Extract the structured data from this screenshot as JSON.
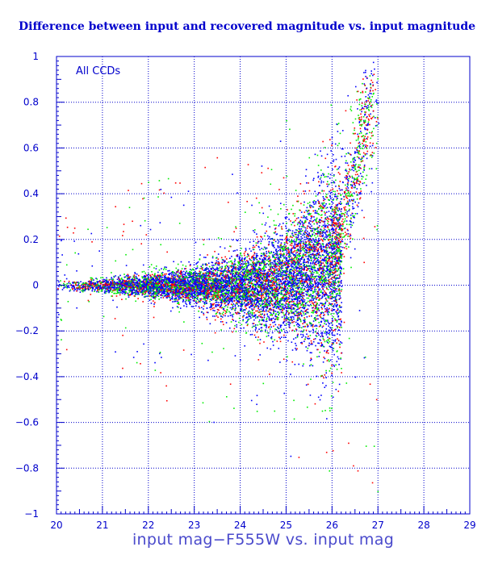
{
  "chart_data": {
    "type": "scatter",
    "title": "Difference between input and recovered magnitude vs. input magnitude",
    "xlabel": "input mag−F555W vs. input mag",
    "ylabel": "",
    "annotation": "All CCDs",
    "xlim": [
      20,
      29
    ],
    "ylim": [
      -1,
      1
    ],
    "x_ticks": [
      "20",
      "21",
      "22",
      "23",
      "24",
      "25",
      "26",
      "27",
      "28",
      "29"
    ],
    "y_ticks": [
      "1",
      "0.8",
      "0.6",
      "0.4",
      "0.2",
      "0",
      "−0.2",
      "−0.4",
      "−0.6",
      "−0.8",
      "−1"
    ],
    "grid": true,
    "series": [
      {
        "color": "#ff0000"
      },
      {
        "color": "#00ee00"
      },
      {
        "color": "#0000ff"
      }
    ],
    "distribution": {
      "x_range": [
        20.0,
        26.9
      ],
      "scatter_envelope": [
        {
          "x": 20.0,
          "sigma": 0.01
        },
        {
          "x": 21.0,
          "sigma": 0.015
        },
        {
          "x": 22.0,
          "sigma": 0.025
        },
        {
          "x": 23.0,
          "sigma": 0.04
        },
        {
          "x": 24.0,
          "sigma": 0.07
        },
        {
          "x": 25.0,
          "sigma": 0.12
        },
        {
          "x": 25.5,
          "sigma": 0.16
        },
        {
          "x": 26.0,
          "sigma": 0.22
        }
      ],
      "bright_cutoff": 26.2,
      "faint_tail_x_range": [
        26.0,
        26.9
      ],
      "faint_tail_y_range": [
        0.1,
        1.0
      ]
    }
  }
}
